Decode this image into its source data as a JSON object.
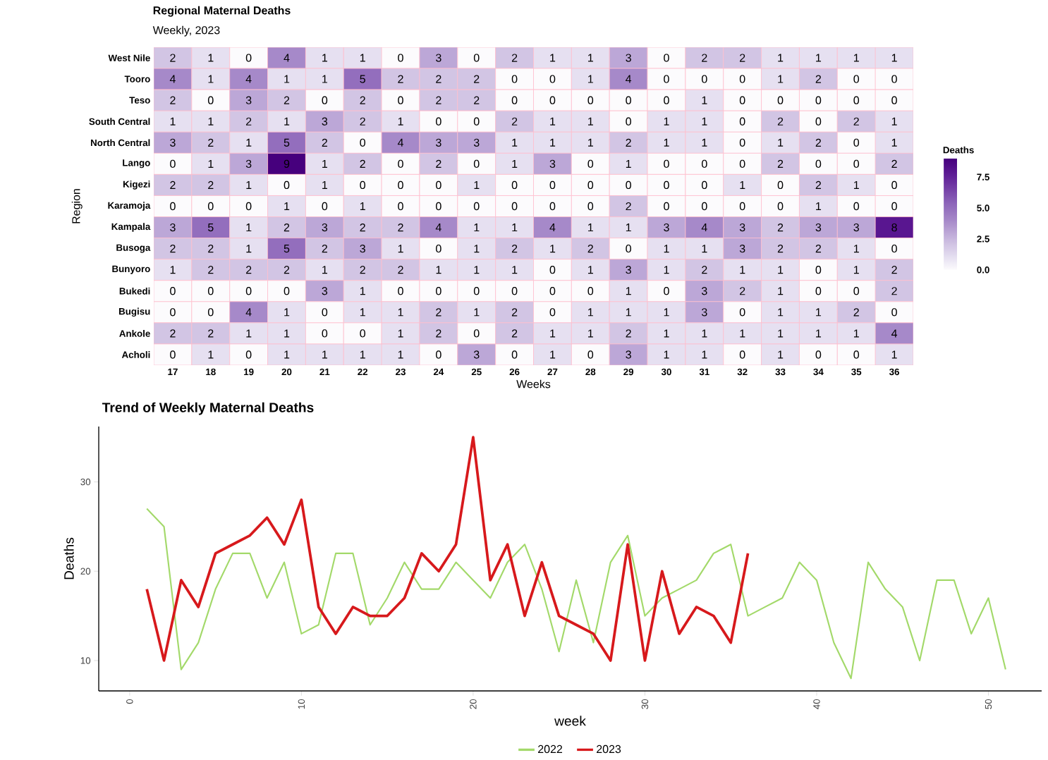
{
  "chart_data": [
    {
      "type": "heatmap",
      "title": "Regional Maternal Deaths",
      "subtitle": "Weekly, 2023",
      "xlabel": "Weeks",
      "ylabel": "Region",
      "clabel": "Deaths",
      "categories": [
        "17",
        "18",
        "19",
        "20",
        "21",
        "22",
        "23",
        "24",
        "25",
        "26",
        "27",
        "28",
        "29",
        "30",
        "31",
        "32",
        "33",
        "34",
        "35",
        "36"
      ],
      "y_categories": [
        "West Nile",
        "Tooro",
        "Teso",
        "South Central",
        "North Central",
        "Lango",
        "Kigezi",
        "Karamoja",
        "Kampala",
        "Busoga",
        "Bunyoro",
        "Bukedi",
        "Bugisu",
        "Ankole",
        "Acholi"
      ],
      "cells": [
        [
          2,
          1,
          0,
          4,
          1,
          1,
          0,
          3,
          0,
          2,
          1,
          1,
          3,
          0,
          2,
          2,
          1,
          1,
          1,
          1
        ],
        [
          4,
          1,
          4,
          1,
          1,
          5,
          2,
          2,
          2,
          0,
          0,
          1,
          4,
          0,
          0,
          0,
          1,
          2,
          0,
          0
        ],
        [
          2,
          0,
          3,
          2,
          0,
          2,
          0,
          2,
          2,
          0,
          0,
          0,
          0,
          0,
          1,
          0,
          0,
          0,
          0,
          0
        ],
        [
          1,
          1,
          2,
          1,
          3,
          2,
          1,
          0,
          0,
          2,
          1,
          1,
          0,
          1,
          1,
          0,
          2,
          0,
          2,
          1
        ],
        [
          3,
          2,
          1,
          5,
          2,
          0,
          4,
          3,
          3,
          1,
          1,
          1,
          2,
          1,
          1,
          0,
          1,
          2,
          0,
          1
        ],
        [
          0,
          1,
          3,
          9,
          1,
          2,
          0,
          2,
          0,
          1,
          3,
          0,
          1,
          0,
          0,
          0,
          2,
          0,
          0,
          2
        ],
        [
          2,
          2,
          1,
          0,
          1,
          0,
          0,
          0,
          1,
          0,
          0,
          0,
          0,
          0,
          0,
          1,
          0,
          2,
          1,
          0
        ],
        [
          0,
          0,
          0,
          1,
          0,
          1,
          0,
          0,
          0,
          0,
          0,
          0,
          2,
          0,
          0,
          0,
          0,
          1,
          0,
          0
        ],
        [
          3,
          5,
          1,
          2,
          3,
          2,
          2,
          4,
          1,
          1,
          4,
          1,
          1,
          3,
          4,
          3,
          2,
          3,
          3,
          8
        ],
        [
          2,
          2,
          1,
          5,
          2,
          3,
          1,
          0,
          1,
          2,
          1,
          2,
          0,
          1,
          1,
          3,
          2,
          2,
          1,
          0
        ],
        [
          1,
          2,
          2,
          2,
          1,
          2,
          2,
          1,
          1,
          1,
          0,
          1,
          3,
          1,
          2,
          1,
          1,
          0,
          1,
          2
        ],
        [
          0,
          0,
          0,
          0,
          3,
          1,
          0,
          0,
          0,
          0,
          0,
          0,
          1,
          0,
          3,
          2,
          1,
          0,
          0,
          2
        ],
        [
          0,
          0,
          4,
          1,
          0,
          1,
          1,
          2,
          1,
          2,
          0,
          1,
          1,
          1,
          3,
          0,
          1,
          1,
          2,
          0
        ],
        [
          2,
          2,
          1,
          1,
          0,
          0,
          1,
          2,
          0,
          2,
          1,
          1,
          2,
          1,
          1,
          1,
          1,
          1,
          1,
          4
        ],
        [
          0,
          1,
          0,
          1,
          1,
          1,
          1,
          0,
          3,
          0,
          1,
          0,
          3,
          1,
          1,
          0,
          1,
          0,
          0,
          1
        ]
      ],
      "cell_labels": [
        [
          "2",
          "1",
          "0",
          "4",
          "1",
          "1",
          "0",
          "3",
          "0",
          "2",
          "1",
          "1",
          "3",
          "0",
          "2",
          "2",
          "1",
          "1",
          "1",
          "1"
        ],
        [
          "4",
          "1",
          "4",
          "1",
          "1",
          "5",
          "2",
          "2",
          "2",
          "0",
          "0",
          "1",
          "4",
          "0",
          "0",
          "0",
          "1",
          "2",
          "0",
          "0"
        ],
        [
          "2",
          "0",
          "3",
          "2",
          "0",
          "2",
          "0",
          "2",
          "2",
          "0",
          "0",
          "0",
          "0",
          "0",
          "1",
          "0",
          "0",
          "0",
          "0",
          "0"
        ],
        [
          "1",
          "1",
          "2",
          "1",
          "3",
          "2",
          "1",
          "0",
          "0",
          "2",
          "1",
          "1",
          "0",
          "1",
          "1",
          "0",
          "2",
          "0",
          "2",
          "1"
        ],
        [
          "3",
          "2",
          "1",
          "5",
          "2",
          "0",
          "4",
          "3",
          "3",
          "1",
          "1",
          "1",
          "2",
          "1",
          "1",
          "0",
          "1",
          "2",
          "0",
          "1"
        ],
        [
          "0",
          "1",
          "3",
          "9",
          "1",
          "2",
          "0",
          "2",
          "0",
          "1",
          "3",
          "0",
          "1",
          "0",
          "0",
          "0",
          "2",
          "0",
          "0",
          "2"
        ],
        [
          "2",
          "2",
          "1",
          "0",
          "1",
          "0",
          "0",
          "0",
          "1",
          "0",
          "0",
          "0",
          "0",
          "0",
          "0",
          "1",
          "0",
          "2",
          "1",
          "0"
        ],
        [
          "0",
          "0",
          "0",
          "1",
          "0",
          "1",
          "0",
          "0",
          "0",
          "0",
          "0",
          "0",
          "2",
          "0",
          "0",
          "0",
          "0",
          "1",
          "0",
          "0"
        ],
        [
          "3",
          "5",
          "1",
          "2",
          "3",
          "2",
          "2",
          "4",
          "1",
          "1",
          "4",
          "1",
          "1",
          "3",
          "4",
          "3",
          "2",
          "3",
          "3",
          "8"
        ],
        [
          "2",
          "2",
          "1",
          "5",
          "2",
          "3",
          "1",
          "0",
          "1",
          "2",
          "1",
          "2",
          "0",
          "1",
          "1",
          "3",
          "2",
          "2",
          "1",
          "0"
        ],
        [
          "1",
          "2",
          "2",
          "2",
          "1",
          "2",
          "2",
          "1",
          "1",
          "1",
          "0",
          "1",
          "3",
          "1",
          "2",
          "1",
          "1",
          "0",
          "1",
          "2"
        ],
        [
          "0",
          "0",
          "0",
          "0",
          "3",
          "1",
          "0",
          "0",
          "0",
          "0",
          "0",
          "0",
          "1",
          "0",
          "3",
          "2",
          "1",
          "0",
          "0",
          "2"
        ],
        [
          "0",
          "0",
          "4",
          "1",
          "0",
          "1",
          "1",
          "2",
          "1",
          "2",
          "0",
          "1",
          "1",
          "1",
          "3",
          "0",
          "1",
          "1",
          "2",
          "0"
        ],
        [
          "2",
          "2",
          "1",
          "1",
          "0",
          "0",
          "1",
          "2",
          "0",
          "2",
          "1",
          "1",
          "2",
          "1",
          "1",
          "1",
          "1",
          "1",
          "1",
          "4"
        ],
        [
          "0",
          "1",
          "0",
          "1",
          "1",
          "1",
          "1",
          "0",
          "3",
          "0",
          "1",
          "0",
          "3",
          "1",
          "1",
          "0",
          "1",
          "0",
          "0",
          "1"
        ]
      ],
      "clim": [
        0,
        9
      ],
      "cticks": [
        {
          "value": 0,
          "label": "0.0"
        },
        {
          "value": 2.5,
          "label": "2.5"
        },
        {
          "value": 5,
          "label": "5.0"
        },
        {
          "value": 7.5,
          "label": "7.5"
        }
      ]
    },
    {
      "type": "line",
      "title": "Trend of Weekly Maternal Deaths",
      "xlabel": "week",
      "ylabel": "Deaths",
      "legend": "bottom",
      "xlim": [
        -1.8,
        53.1
      ],
      "ylim": [
        6.6,
        36.2
      ],
      "xticks": [
        0,
        10,
        20,
        30,
        40,
        50
      ],
      "yticks": [
        10,
        20,
        30
      ],
      "series": [
        {
          "name": "2022",
          "color": "#a3d96a",
          "x": [
            1,
            2,
            3,
            4,
            5,
            6,
            7,
            8,
            9,
            10,
            11,
            12,
            13,
            14,
            15,
            16,
            17,
            18,
            19,
            20,
            21,
            22,
            23,
            24,
            25,
            26,
            27,
            28,
            29,
            30,
            31,
            32,
            33,
            34,
            35,
            36,
            37,
            38,
            39,
            40,
            41,
            42,
            43,
            44,
            45,
            46,
            47,
            48,
            49,
            50,
            51
          ],
          "values": [
            27,
            25,
            9,
            12,
            18,
            22,
            22,
            17,
            21,
            13,
            14,
            22,
            22,
            14,
            17,
            21,
            18,
            18,
            21,
            19,
            17,
            21,
            23,
            18,
            11,
            19,
            12,
            21,
            24,
            15,
            17,
            18,
            19,
            22,
            23,
            15,
            16,
            17,
            21,
            19,
            12,
            8,
            21,
            18,
            16,
            10,
            19,
            19,
            13,
            17,
            9
          ]
        },
        {
          "name": "2023",
          "color": "#d7191c",
          "x": [
            1,
            2,
            3,
            4,
            5,
            6,
            7,
            8,
            9,
            10,
            11,
            12,
            13,
            14,
            15,
            16,
            17,
            18,
            19,
            20,
            21,
            22,
            23,
            24,
            25,
            26,
            27,
            28,
            29,
            30,
            31,
            32,
            33,
            34,
            35,
            36
          ],
          "values": [
            18,
            10,
            19,
            16,
            22,
            23,
            24,
            26,
            23,
            28,
            16,
            13,
            16,
            15,
            15,
            17,
            22,
            20,
            23,
            35,
            19,
            23,
            15,
            21,
            15,
            14,
            13,
            10,
            23,
            10,
            20,
            13,
            16,
            15,
            12,
            22
          ]
        }
      ]
    }
  ]
}
